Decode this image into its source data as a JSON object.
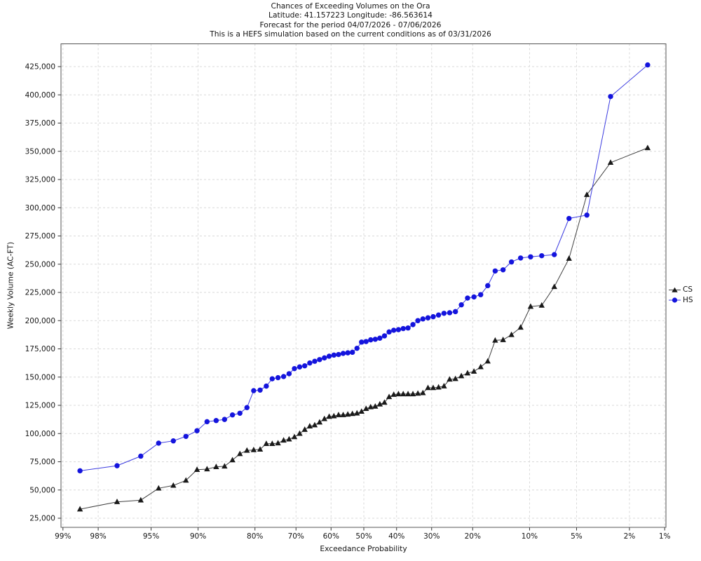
{
  "header": {
    "title": "Chances of Exceeding Volumes on the Ora",
    "subtitle_location": "Latitude: 41.157223 Longitude: -86.563614",
    "subtitle_period": "Forecast for the period 04/07/2026 - 07/06/2026",
    "subtitle_note": "This is a HEFS simulation based on the current conditions as of 03/31/2026"
  },
  "colors": {
    "background": "#ffffff",
    "plot_border": "#555555",
    "grid": "#d9d9d9",
    "text": "#141414",
    "cs_marker": "#1a1a1a",
    "cs_line": "#404040",
    "hs_marker": "#1414dd",
    "hs_line": "#3c3ce0"
  },
  "chart_data": {
    "type": "line",
    "title": "Chances of Exceeding Volumes on the Ora",
    "subtitle_lines": [
      "Latitude: 41.157223 Longitude: -86.563614",
      "Forecast for the period 04/07/2026 - 07/06/2026",
      "This is a HEFS simulation based on the current conditions as of 03/31/2026"
    ],
    "xlabel": "Exceedance Probability",
    "ylabel": "Weekly Volume (AC-FT)",
    "x_scale": "normal-probability (probit), decreasing left to right",
    "x_tick_values_pct": [
      99,
      98,
      95,
      90,
      80,
      70,
      60,
      50,
      40,
      30,
      20,
      10,
      5,
      2,
      1
    ],
    "x_tick_labels": [
      "99%",
      "98%",
      "95%",
      "90%",
      "80%",
      "70%",
      "60%",
      "50%",
      "40%",
      "30%",
      "20%",
      "10%",
      "5%",
      "2%",
      "1%"
    ],
    "y_ticks": [
      25000,
      50000,
      75000,
      100000,
      125000,
      150000,
      175000,
      200000,
      225000,
      250000,
      275000,
      300000,
      325000,
      350000,
      375000,
      400000,
      425000
    ],
    "ylim": [
      17000,
      445000
    ],
    "grid": true,
    "legend_position": "center-right, outside plot",
    "legend_entries": [
      {
        "label": "CS",
        "marker": "triangle",
        "color": "#1a1a1a"
      },
      {
        "label": "HS",
        "marker": "circle",
        "color": "#1414dd"
      }
    ],
    "exceedance_probability_pct": [
      98.59,
      97.18,
      95.77,
      94.37,
      92.96,
      91.55,
      90.14,
      88.73,
      87.32,
      85.92,
      84.51,
      83.1,
      81.69,
      80.28,
      78.87,
      77.46,
      76.06,
      74.65,
      73.24,
      71.83,
      70.42,
      69.01,
      67.61,
      66.2,
      64.79,
      63.38,
      61.97,
      60.56,
      59.15,
      57.75,
      56.34,
      54.93,
      53.52,
      52.11,
      50.7,
      49.3,
      47.89,
      46.48,
      45.07,
      43.66,
      42.25,
      40.85,
      39.44,
      38.03,
      36.62,
      35.21,
      33.8,
      32.39,
      30.99,
      29.58,
      28.17,
      26.76,
      25.35,
      23.94,
      22.54,
      21.13,
      19.72,
      18.31,
      16.9,
      15.49,
      14.08,
      12.68,
      11.27,
      9.86,
      8.45,
      7.04,
      5.63,
      4.23,
      2.82,
      1.41
    ],
    "series": [
      {
        "name": "CS",
        "marker": "triangle",
        "color": "#1a1a1a",
        "values": [
          33000,
          39500,
          41000,
          51500,
          54000,
          58500,
          68000,
          68500,
          70500,
          71000,
          76500,
          82000,
          85000,
          85500,
          86000,
          91000,
          91000,
          91500,
          94000,
          95000,
          97000,
          100000,
          103500,
          106500,
          107500,
          110000,
          113000,
          115000,
          115500,
          116500,
          116500,
          117000,
          117500,
          118000,
          119500,
          122000,
          123500,
          124000,
          126000,
          127500,
          132500,
          134500,
          135000,
          135000,
          135000,
          135000,
          135500,
          136000,
          140500,
          140500,
          141000,
          142000,
          148000,
          148500,
          151000,
          153500,
          155000,
          159000,
          164000,
          182500,
          183000,
          187500,
          194000,
          212500,
          213500,
          230000,
          255000,
          311500,
          340000,
          353000
        ]
      },
      {
        "name": "HS",
        "marker": "circle",
        "color": "#1414dd",
        "values": [
          67000,
          71500,
          80000,
          91500,
          93500,
          97500,
          102500,
          110500,
          111500,
          112500,
          116500,
          118000,
          123000,
          138000,
          138500,
          142000,
          148500,
          149500,
          150500,
          153000,
          157500,
          159000,
          160000,
          162500,
          164000,
          165500,
          167000,
          168500,
          169500,
          170000,
          171000,
          171500,
          172000,
          175500,
          181000,
          181500,
          183000,
          183500,
          184500,
          186500,
          190000,
          191500,
          192000,
          193000,
          193500,
          196500,
          200000,
          201500,
          202500,
          203500,
          205000,
          206500,
          207000,
          208000,
          214000,
          220000,
          221000,
          223000,
          231000,
          244000,
          245000,
          252000,
          255500,
          256500,
          257500,
          258500,
          290500,
          293500,
          398500,
          426500
        ]
      }
    ]
  }
}
